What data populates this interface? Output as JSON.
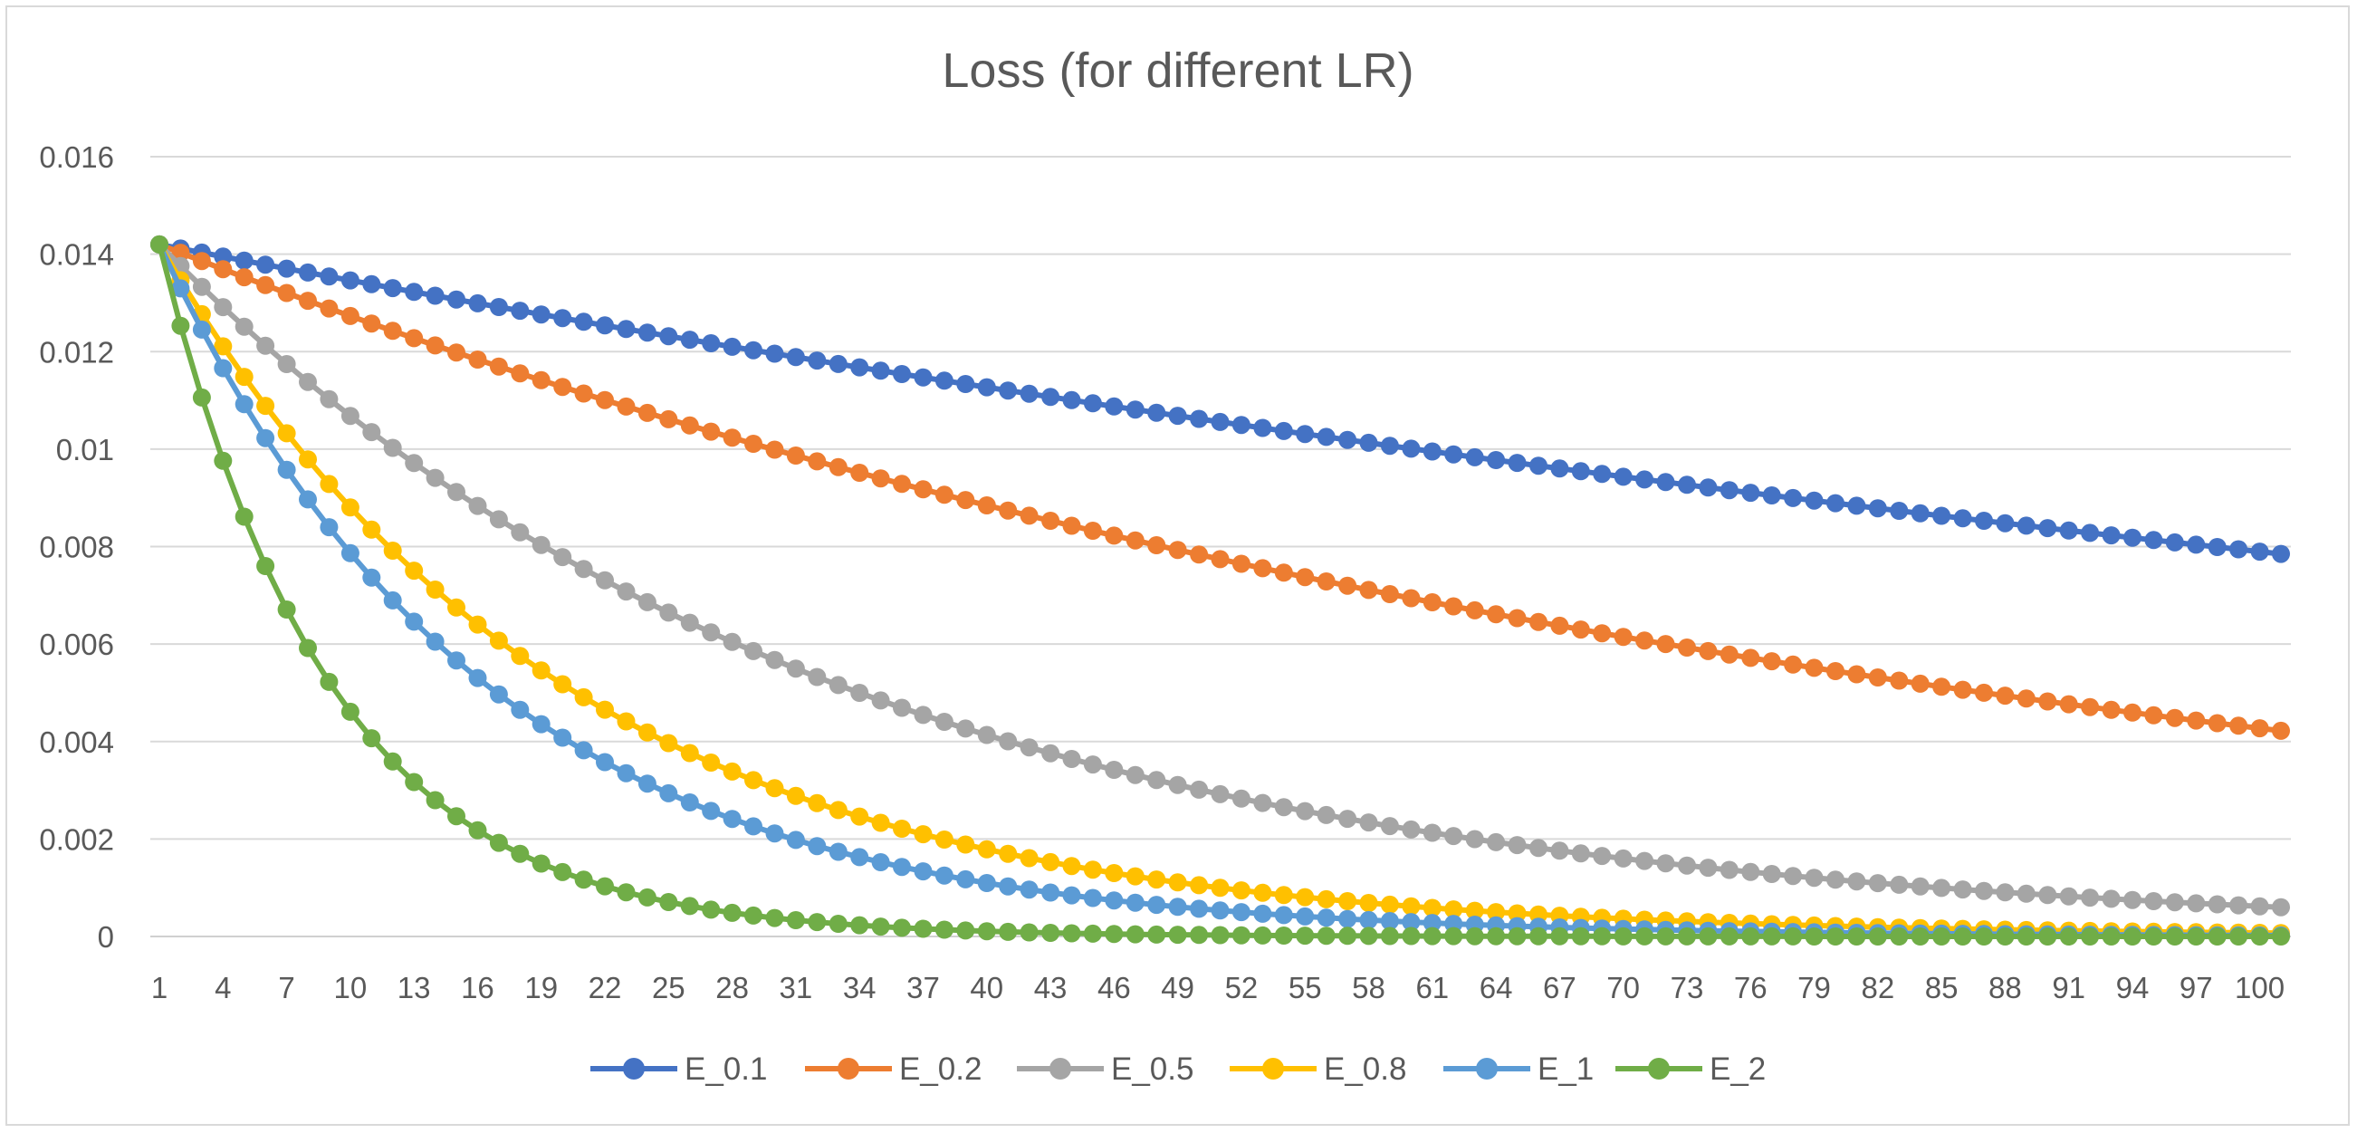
{
  "chart_data": {
    "type": "line",
    "title": "Loss (for different LR)",
    "xlabel": "",
    "ylabel": "",
    "x_start": 1,
    "x_end": 101,
    "x_tick_labels": [
      "1",
      "4",
      "7",
      "10",
      "13",
      "16",
      "19",
      "22",
      "25",
      "28",
      "31",
      "34",
      "37",
      "40",
      "43",
      "46",
      "49",
      "52",
      "55",
      "58",
      "61",
      "64",
      "67",
      "70",
      "73",
      "76",
      "79",
      "82",
      "85",
      "88",
      "91",
      "94",
      "97",
      "100"
    ],
    "y_tick_labels": [
      "0",
      "0.002",
      "0.004",
      "0.006",
      "0.008",
      "0.01",
      "0.012",
      "0.014",
      "0.016"
    ],
    "ylim": [
      0,
      0.016
    ],
    "grid": true,
    "legend_position": "bottom",
    "series": [
      {
        "name": "E_0.1",
        "color": "#4472c4",
        "start": 0.0142,
        "end_value": 0.00785,
        "model": "exponential"
      },
      {
        "name": "E_0.2",
        "color": "#ed7d31",
        "start": 0.0142,
        "end_value": 0.00422,
        "model": "exponential"
      },
      {
        "name": "E_0.5",
        "color": "#a5a5a5",
        "start": 0.0142,
        "end_value": 0.0006,
        "model": "exponential"
      },
      {
        "name": "E_0.8",
        "color": "#ffc000",
        "start": 0.0142,
        "end_value": 7e-05,
        "model": "exponential"
      },
      {
        "name": "E_1",
        "color": "#5b9bd5",
        "start": 0.0142,
        "end_value": 2e-05,
        "model": "exponential"
      },
      {
        "name": "E_2",
        "color": "#70ad47",
        "start": 0.0142,
        "end_value": 0.0,
        "model": "exponential"
      }
    ]
  }
}
